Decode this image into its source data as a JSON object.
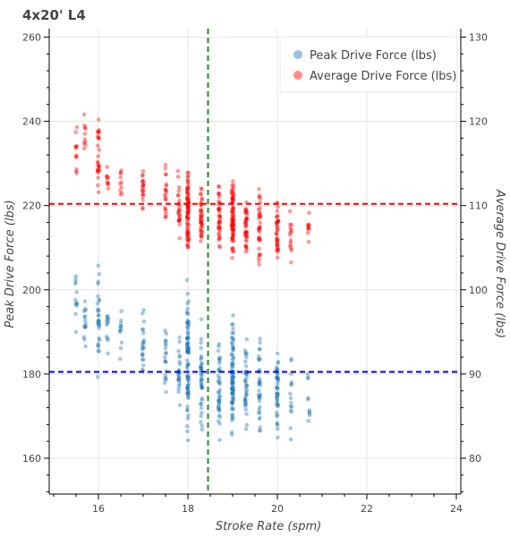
{
  "chart_data": {
    "type": "scatter",
    "title": "4x20' L4",
    "xlabel": "Stroke Rate (spm)",
    "ylabel": "Peak Drive Force (lbs)",
    "y2label": "Average Drive Force (lbs)",
    "xlim": [
      14.9,
      24.1
    ],
    "ylim": [
      151.5,
      262
    ],
    "y2lim": [
      75.75,
      131
    ],
    "x_ticks": [
      16,
      18,
      20,
      22,
      24
    ],
    "y_ticks": [
      160,
      180,
      200,
      220,
      240,
      260
    ],
    "y2_ticks": [
      80,
      90,
      100,
      110,
      120,
      130
    ],
    "grid": true,
    "legend_position": "top-right",
    "series": [
      {
        "name": "Peak Drive Force (lbs)",
        "axis": "left",
        "color": "#1f77b4",
        "clusters": [
          {
            "x": 15.5,
            "y_min": 182,
            "y_max": 210,
            "count": 12
          },
          {
            "x": 15.7,
            "y_min": 180,
            "y_max": 205,
            "count": 15
          },
          {
            "x": 16.0,
            "y_min": 175,
            "y_max": 212,
            "count": 30
          },
          {
            "x": 16.2,
            "y_min": 182,
            "y_max": 200,
            "count": 12
          },
          {
            "x": 16.5,
            "y_min": 180,
            "y_max": 198,
            "count": 12
          },
          {
            "x": 17.0,
            "y_min": 176,
            "y_max": 200,
            "count": 22
          },
          {
            "x": 17.5,
            "y_min": 172,
            "y_max": 195,
            "count": 20
          },
          {
            "x": 17.8,
            "y_min": 168,
            "y_max": 194,
            "count": 25
          },
          {
            "x": 18.0,
            "y_min": 162,
            "y_max": 204,
            "count": 85
          },
          {
            "x": 18.3,
            "y_min": 163,
            "y_max": 195,
            "count": 40
          },
          {
            "x": 18.7,
            "y_min": 162,
            "y_max": 192,
            "count": 40
          },
          {
            "x": 19.0,
            "y_min": 160,
            "y_max": 198,
            "count": 85
          },
          {
            "x": 19.3,
            "y_min": 162,
            "y_max": 193,
            "count": 40
          },
          {
            "x": 19.6,
            "y_min": 160,
            "y_max": 194,
            "count": 35
          },
          {
            "x": 20.0,
            "y_min": 160,
            "y_max": 192,
            "count": 45
          },
          {
            "x": 20.3,
            "y_min": 162,
            "y_max": 188,
            "count": 15
          },
          {
            "x": 20.7,
            "y_min": 165,
            "y_max": 185,
            "count": 10
          }
        ]
      },
      {
        "name": "Average Drive Force (lbs)",
        "axis": "right",
        "color": "#ff0000",
        "clusters": [
          {
            "x": 15.5,
            "y_min": 110,
            "y_max": 122,
            "count": 12
          },
          {
            "x": 15.7,
            "y_min": 113,
            "y_max": 123,
            "count": 10
          },
          {
            "x": 16.0,
            "y_min": 109,
            "y_max": 122,
            "count": 28
          },
          {
            "x": 16.2,
            "y_min": 110,
            "y_max": 116,
            "count": 10
          },
          {
            "x": 16.5,
            "y_min": 109,
            "y_max": 115,
            "count": 10
          },
          {
            "x": 17.0,
            "y_min": 107,
            "y_max": 116,
            "count": 20
          },
          {
            "x": 17.5,
            "y_min": 106,
            "y_max": 116,
            "count": 20
          },
          {
            "x": 17.8,
            "y_min": 104,
            "y_max": 115,
            "count": 25
          },
          {
            "x": 18.0,
            "y_min": 102,
            "y_max": 116,
            "count": 80
          },
          {
            "x": 18.3,
            "y_min": 104,
            "y_max": 114,
            "count": 40
          },
          {
            "x": 18.7,
            "y_min": 103,
            "y_max": 114,
            "count": 40
          },
          {
            "x": 19.0,
            "y_min": 102,
            "y_max": 115,
            "count": 80
          },
          {
            "x": 19.3,
            "y_min": 103,
            "y_max": 113,
            "count": 40
          },
          {
            "x": 19.6,
            "y_min": 102,
            "y_max": 113,
            "count": 35
          },
          {
            "x": 20.0,
            "y_min": 102,
            "y_max": 112,
            "count": 40
          },
          {
            "x": 20.3,
            "y_min": 102,
            "y_max": 110,
            "count": 15
          },
          {
            "x": 20.7,
            "y_min": 104,
            "y_max": 110,
            "count": 10
          }
        ]
      }
    ],
    "reference_lines": [
      {
        "orientation": "vertical",
        "axis": "x",
        "value": 18.45,
        "color": "#228b22",
        "style": "dashed"
      },
      {
        "orientation": "horizontal",
        "axis": "left",
        "value": 180.5,
        "color": "#0000ff",
        "style": "dashed"
      },
      {
        "orientation": "horizontal",
        "axis": "right",
        "value": 110.2,
        "color": "#ff0000",
        "style": "dashed"
      }
    ]
  }
}
